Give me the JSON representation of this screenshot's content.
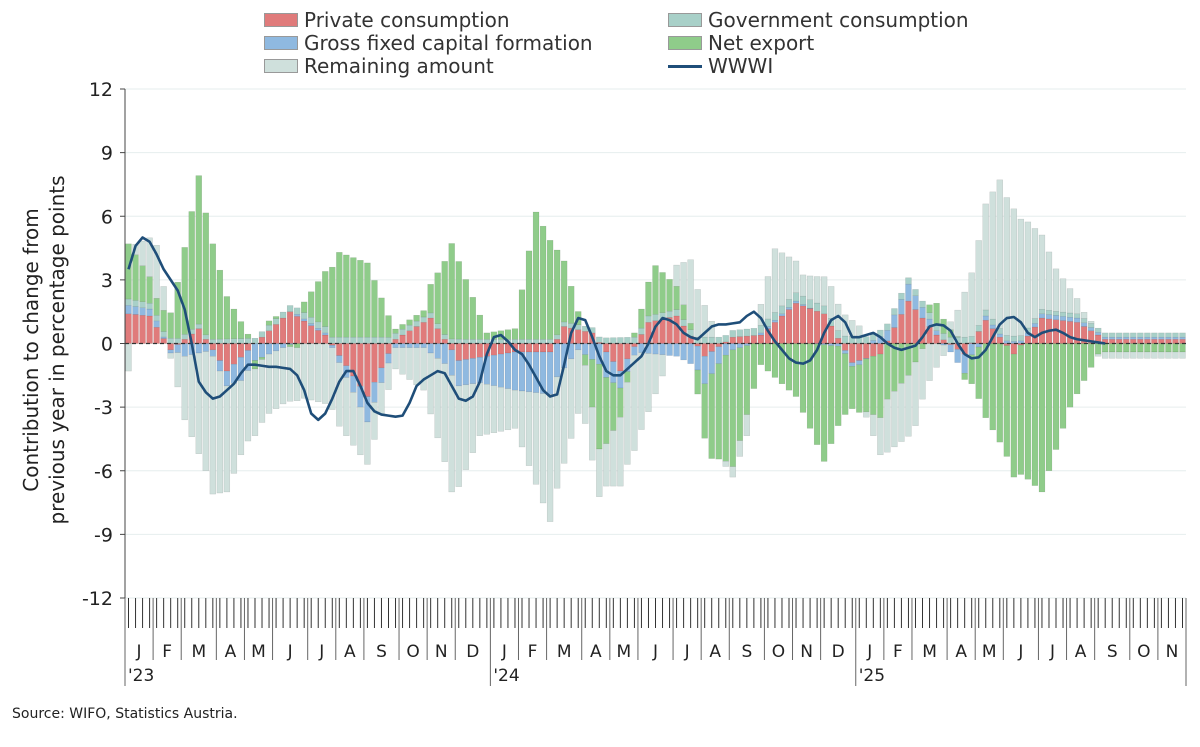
{
  "chart_data": {
    "type": "stacked-bar+line",
    "title": "",
    "ylabel_line1": "Contribution to change from",
    "ylabel_line2": "previous year in percentage points",
    "ylim": [
      -12,
      12
    ],
    "yticks": [
      12,
      9,
      6,
      3,
      0,
      -3,
      -6,
      -9,
      -12
    ],
    "months": [
      "J",
      "F",
      "M",
      "A",
      "M",
      "J",
      "J",
      "A",
      "S",
      "O",
      "N",
      "D",
      "J",
      "F",
      "M",
      "A",
      "M",
      "J",
      "J",
      "A",
      "S",
      "O",
      "N",
      "D",
      "J",
      "F",
      "M",
      "A",
      "M",
      "J",
      "J",
      "A",
      "S",
      "O",
      "N"
    ],
    "year_labels": [
      {
        "month_index": 0,
        "label": "'23"
      },
      {
        "month_index": 12,
        "label": "'24"
      },
      {
        "month_index": 24,
        "label": "'25"
      }
    ],
    "weeks_per_month": [
      4,
      4,
      5,
      4,
      4,
      5,
      4,
      4,
      5,
      4,
      4,
      5,
      4,
      4,
      5,
      4,
      4,
      5,
      4,
      4,
      5,
      4,
      4,
      5,
      4,
      4,
      5,
      4,
      4,
      5,
      4,
      4,
      5,
      4,
      4
    ],
    "series": [
      {
        "key": "priv",
        "name": "Private consumption",
        "color": "#e07b7b",
        "anchors": [
          [
            0,
            1.4
          ],
          [
            3,
            1.3
          ],
          [
            6,
            -0.3
          ],
          [
            10,
            0.7
          ],
          [
            14,
            -1.3
          ],
          [
            18,
            0
          ],
          [
            23,
            1.5
          ],
          [
            28,
            0.4
          ],
          [
            34,
            -2.5
          ],
          [
            38,
            0.2
          ],
          [
            43,
            1.2
          ],
          [
            47,
            -0.8
          ],
          [
            51,
            -0.6
          ],
          [
            55,
            -0.4
          ],
          [
            60,
            -0.4
          ],
          [
            62,
            0.8
          ],
          [
            66,
            0.5
          ],
          [
            70,
            -1.3
          ],
          [
            74,
            1.0
          ],
          [
            78,
            1.3
          ],
          [
            82,
            -0.6
          ],
          [
            86,
            0.3
          ],
          [
            90,
            0.4
          ],
          [
            95,
            1.9
          ],
          [
            99,
            1.4
          ],
          [
            103,
            -0.9
          ],
          [
            107,
            -0.5
          ],
          [
            111,
            2.0
          ],
          [
            115,
            0.4
          ],
          [
            119,
            -0.5
          ],
          [
            122,
            1.1
          ],
          [
            126,
            -0.5
          ],
          [
            130,
            1.2
          ],
          [
            135,
            1.0
          ],
          [
            139,
            0.2
          ]
        ]
      },
      {
        "key": "gfcf",
        "name": "Gross fixed capital formation",
        "color": "#8fb9e0",
        "anchors": [
          [
            0,
            0.4
          ],
          [
            4,
            0.3
          ],
          [
            8,
            -0.6
          ],
          [
            12,
            -0.3
          ],
          [
            16,
            -1.1
          ],
          [
            20,
            -0.5
          ],
          [
            24,
            0.1
          ],
          [
            28,
            0.1
          ],
          [
            34,
            -1.2
          ],
          [
            38,
            -0.2
          ],
          [
            42,
            -0.2
          ],
          [
            46,
            -1.2
          ],
          [
            50,
            -1.2
          ],
          [
            55,
            -1.8
          ],
          [
            60,
            -2.0
          ],
          [
            64,
            -0.3
          ],
          [
            68,
            -1.2
          ],
          [
            72,
            -0.4
          ],
          [
            78,
            -0.6
          ],
          [
            82,
            -1.3
          ],
          [
            86,
            -0.3
          ],
          [
            90,
            0.1
          ],
          [
            95,
            0.1
          ],
          [
            100,
            -0.1
          ],
          [
            104,
            -0.2
          ],
          [
            108,
            0.5
          ],
          [
            111,
            0.8
          ],
          [
            115,
            0.2
          ],
          [
            119,
            -0.9
          ],
          [
            122,
            0.2
          ],
          [
            126,
            0.1
          ],
          [
            130,
            0.2
          ],
          [
            135,
            0.2
          ],
          [
            139,
            0.1
          ]
        ]
      },
      {
        "key": "gov",
        "name": "Government consumption",
        "color": "#a8d0c8",
        "anchors": [
          [
            0,
            0.3
          ],
          [
            12,
            0.2
          ],
          [
            24,
            0.3
          ],
          [
            36,
            0.3
          ],
          [
            48,
            0.2
          ],
          [
            60,
            0.2
          ],
          [
            72,
            0.3
          ],
          [
            84,
            0.3
          ],
          [
            96,
            0.4
          ],
          [
            108,
            0.3
          ],
          [
            120,
            0.3
          ],
          [
            132,
            0.2
          ],
          [
            139,
            0.2
          ]
        ]
      },
      {
        "key": "net",
        "name": "Net export",
        "color": "#8fcc8a",
        "anchors": [
          [
            0,
            2.6
          ],
          [
            4,
            0.8
          ],
          [
            6,
            1.2
          ],
          [
            10,
            7.0
          ],
          [
            14,
            2.0
          ],
          [
            18,
            -0.4
          ],
          [
            20,
            0.2
          ],
          [
            24,
            -0.2
          ],
          [
            30,
            4.0
          ],
          [
            34,
            3.5
          ],
          [
            38,
            0.2
          ],
          [
            42,
            0.3
          ],
          [
            46,
            4.5
          ],
          [
            51,
            0.3
          ],
          [
            55,
            0.5
          ],
          [
            58,
            6.0
          ],
          [
            61,
            4.0
          ],
          [
            65,
            -0.5
          ],
          [
            67,
            -4.0
          ],
          [
            71,
            -0.5
          ],
          [
            75,
            2.3
          ],
          [
            80,
            0.3
          ],
          [
            83,
            -4.0
          ],
          [
            86,
            -5.5
          ],
          [
            90,
            -1.0
          ],
          [
            95,
            -2.5
          ],
          [
            99,
            -5.5
          ],
          [
            103,
            -2.0
          ],
          [
            107,
            -3.0
          ],
          [
            111,
            -1.5
          ],
          [
            115,
            1.0
          ],
          [
            119,
            -0.3
          ],
          [
            122,
            -3.5
          ],
          [
            126,
            -5.8
          ],
          [
            130,
            -7.0
          ],
          [
            134,
            -3.0
          ],
          [
            138,
            -0.5
          ],
          [
            139,
            -0.4
          ]
        ]
      },
      {
        "key": "rem",
        "name": "Remaining amount",
        "color": "#cfe0dc",
        "anchors": [
          [
            0,
            -1.3
          ],
          [
            1,
            0.5
          ],
          [
            4,
            2.5
          ],
          [
            8,
            -3.0
          ],
          [
            12,
            -6.5
          ],
          [
            16,
            -3.5
          ],
          [
            20,
            -2.8
          ],
          [
            24,
            -2.5
          ],
          [
            30,
            -3.0
          ],
          [
            34,
            -2.0
          ],
          [
            38,
            -1.0
          ],
          [
            42,
            -2.0
          ],
          [
            46,
            -5.5
          ],
          [
            50,
            -2.5
          ],
          [
            55,
            -1.8
          ],
          [
            60,
            -6.0
          ],
          [
            64,
            -3.0
          ],
          [
            68,
            -2.0
          ],
          [
            72,
            -4.5
          ],
          [
            76,
            -1.0
          ],
          [
            80,
            3.0
          ],
          [
            84,
            0
          ],
          [
            88,
            -1.0
          ],
          [
            92,
            3.0
          ],
          [
            96,
            1.0
          ],
          [
            100,
            1.5
          ],
          [
            104,
            0.5
          ],
          [
            108,
            -2.5
          ],
          [
            112,
            -3.0
          ],
          [
            116,
            -0.5
          ],
          [
            120,
            3.0
          ],
          [
            124,
            7.0
          ],
          [
            128,
            5.0
          ],
          [
            132,
            2.0
          ],
          [
            136,
            0.3
          ],
          [
            139,
            -0.3
          ]
        ]
      }
    ],
    "wwwi": {
      "name": "WWWI",
      "color": "#1f4e79",
      "values": [
        3.5,
        4.6,
        5.0,
        4.8,
        4.2,
        3.5,
        3.0,
        2.5,
        1.6,
        0,
        -1.8,
        -2.3,
        -2.6,
        -2.5,
        -2.2,
        -1.9,
        -1.4,
        -1.0,
        -1.0,
        -1.05,
        -1.1,
        -1.1,
        -1.15,
        -1.2,
        -1.5,
        -2.2,
        -3.3,
        -3.6,
        -3.3,
        -2.6,
        -1.8,
        -1.3,
        -1.3,
        -2.0,
        -2.8,
        -3.2,
        -3.35,
        -3.4,
        -3.45,
        -3.4,
        -2.8,
        -2.0,
        -1.7,
        -1.5,
        -1.3,
        -1.4,
        -2.0,
        -2.6,
        -2.7,
        -2.5,
        -1.8,
        -0.5,
        0.3,
        0.4,
        0.1,
        -0.3,
        -0.5,
        -1.0,
        -1.6,
        -2.2,
        -2.5,
        -2.4,
        -1.0,
        0.5,
        1.2,
        1.1,
        0.3,
        -0.6,
        -1.3,
        -1.5,
        -1.5,
        -1.2,
        -0.9,
        -0.6,
        0.0,
        0.8,
        1.2,
        1.1,
        0.9,
        0.5,
        0.3,
        0.2,
        0.5,
        0.8,
        0.9,
        0.9,
        0.95,
        1.0,
        1.3,
        1.5,
        1.2,
        0.6,
        0.1,
        -0.3,
        -0.7,
        -0.9,
        -0.95,
        -0.8,
        -0.3,
        0.5,
        1.1,
        1.3,
        1.0,
        0.3,
        0.3,
        0.4,
        0.5,
        0.3,
        0.0,
        -0.2,
        -0.3,
        -0.2,
        -0.1,
        0.3,
        0.8,
        0.9,
        0.85,
        0.6,
        0.0,
        -0.5,
        -0.7,
        -0.65,
        -0.3,
        0.3,
        0.9,
        1.2,
        1.25,
        1.0,
        0.5,
        0.3,
        0.5,
        0.6,
        0.65,
        0.5,
        0.3,
        0.2,
        0.15,
        0.1,
        0.05,
        0.0
      ]
    }
  },
  "legend": {
    "priv": "Private consumption",
    "gov": "Government consumption",
    "gfcf": "Gross fixed capital formation",
    "net": "Net export",
    "rem": "Remaining amount",
    "wwwi": "WWWI"
  },
  "source": "Source: WIFO, Statistics Austria."
}
